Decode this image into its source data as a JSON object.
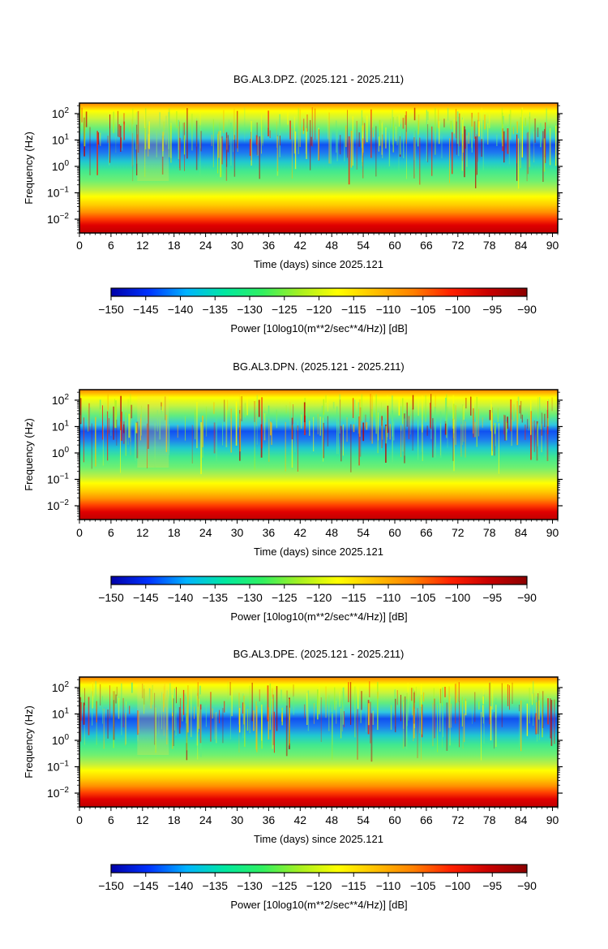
{
  "colors": {
    "background": "#ffffff",
    "colormap": [
      "#0000a8",
      "#0033ff",
      "#00b4ff",
      "#00e8a0",
      "#30f060",
      "#a8f020",
      "#ffff00",
      "#ffc000",
      "#ff8000",
      "#ff2000",
      "#c80000",
      "#8c0000"
    ]
  },
  "chart_data": [
    {
      "type": "heatmap",
      "title": "BG.AL3.DPZ. (2025.121 - 2025.211)",
      "xlabel": "Time (days) since 2025.121",
      "ylabel": "Frequency (Hz)",
      "x_ticks": [
        "0",
        "6",
        "12",
        "18",
        "24",
        "30",
        "36",
        "42",
        "48",
        "54",
        "60",
        "66",
        "72",
        "78",
        "84",
        "90"
      ],
      "xlim": [
        0,
        91
      ],
      "y_scale": "log",
      "y_ticks": [
        {
          "base": "10",
          "exp": "2",
          "value": 100
        },
        {
          "base": "10",
          "exp": "1",
          "value": 10
        },
        {
          "base": "10",
          "exp": "0",
          "value": 1
        },
        {
          "base": "10",
          "exp": "−1",
          "value": 0.1
        },
        {
          "base": "10",
          "exp": "−2",
          "value": 0.01
        }
      ],
      "ylim": [
        0.003,
        250
      ],
      "colorbar": {
        "label": "Power [10log10(m**2/sec**4/Hz)] [dB]",
        "ticks": [
          "−150",
          "−145",
          "−140",
          "−135",
          "−130",
          "−125",
          "−120",
          "−115",
          "−110",
          "−105",
          "−100",
          "−95",
          "−90"
        ],
        "range": [
          -150,
          -90
        ]
      }
    },
    {
      "type": "heatmap",
      "title": "BG.AL3.DPN. (2025.121 - 2025.211)",
      "xlabel": "Time (days) since 2025.121",
      "ylabel": "Frequency (Hz)",
      "x_ticks": [
        "0",
        "6",
        "12",
        "18",
        "24",
        "30",
        "36",
        "42",
        "48",
        "54",
        "60",
        "66",
        "72",
        "78",
        "84",
        "90"
      ],
      "xlim": [
        0,
        91
      ],
      "y_scale": "log",
      "y_ticks": [
        {
          "base": "10",
          "exp": "2",
          "value": 100
        },
        {
          "base": "10",
          "exp": "1",
          "value": 10
        },
        {
          "base": "10",
          "exp": "0",
          "value": 1
        },
        {
          "base": "10",
          "exp": "−1",
          "value": 0.1
        },
        {
          "base": "10",
          "exp": "−2",
          "value": 0.01
        }
      ],
      "ylim": [
        0.003,
        250
      ],
      "colorbar": {
        "label": "Power [10log10(m**2/sec**4/Hz)] [dB]",
        "ticks": [
          "−150",
          "−145",
          "−140",
          "−135",
          "−130",
          "−125",
          "−120",
          "−115",
          "−110",
          "−105",
          "−100",
          "−95",
          "−90"
        ],
        "range": [
          -150,
          -90
        ]
      }
    },
    {
      "type": "heatmap",
      "title": "BG.AL3.DPE. (2025.121 - 2025.211)",
      "xlabel": "Time (days) since 2025.121",
      "ylabel": "Frequency (Hz)",
      "x_ticks": [
        "0",
        "6",
        "12",
        "18",
        "24",
        "30",
        "36",
        "42",
        "48",
        "54",
        "60",
        "66",
        "72",
        "78",
        "84",
        "90"
      ],
      "xlim": [
        0,
        91
      ],
      "y_scale": "log",
      "y_ticks": [
        {
          "base": "10",
          "exp": "2",
          "value": 100
        },
        {
          "base": "10",
          "exp": "1",
          "value": 10
        },
        {
          "base": "10",
          "exp": "0",
          "value": 1
        },
        {
          "base": "10",
          "exp": "−1",
          "value": 0.1
        },
        {
          "base": "10",
          "exp": "−2",
          "value": 0.01
        }
      ],
      "ylim": [
        0.003,
        250
      ],
      "colorbar": {
        "label": "Power [10log10(m**2/sec**4/Hz)] [dB]",
        "ticks": [
          "−150",
          "−145",
          "−140",
          "−135",
          "−130",
          "−125",
          "−120",
          "−115",
          "−110",
          "−105",
          "−100",
          "−95",
          "−90"
        ],
        "range": [
          -150,
          -90
        ]
      }
    }
  ]
}
